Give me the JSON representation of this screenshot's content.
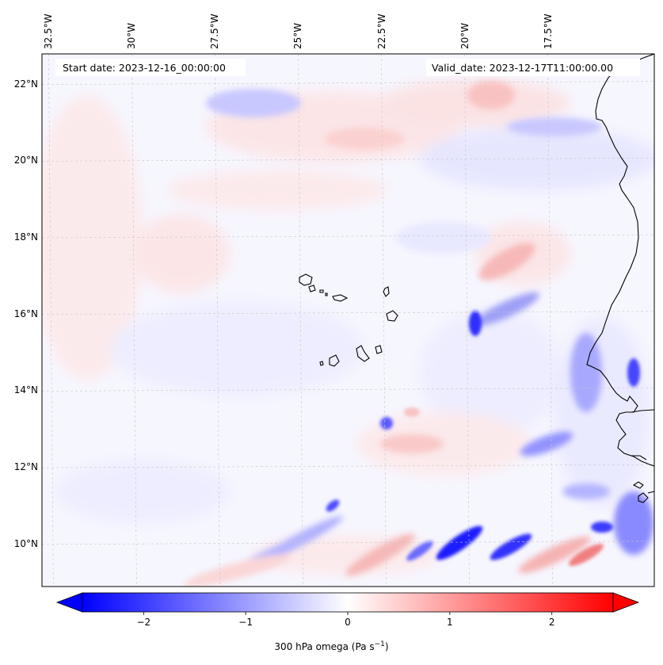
{
  "map": {
    "start_date": "Start date: 2023-12-16_00:00:00",
    "valid_date": "Valid_date: 2023-12-17T11:00:00.00",
    "extent": {
      "lon_min": -32.7,
      "lon_max": -14.3,
      "lat_min": 8.9,
      "lat_max": 22.8
    },
    "lon_ticks": [
      {
        "value": -32.5,
        "label": "32.5°W"
      },
      {
        "value": -30.0,
        "label": "30°W"
      },
      {
        "value": -27.5,
        "label": "27.5°W"
      },
      {
        "value": -25.0,
        "label": "25°W"
      },
      {
        "value": -22.5,
        "label": "22.5°W"
      },
      {
        "value": -20.0,
        "label": "20°W"
      },
      {
        "value": -17.5,
        "label": "17.5°W"
      }
    ],
    "lat_ticks": [
      {
        "value": 22,
        "label": "22°N"
      },
      {
        "value": 20,
        "label": "20°N"
      },
      {
        "value": 18,
        "label": "18°N"
      },
      {
        "value": 16,
        "label": "16°N"
      },
      {
        "value": 14,
        "label": "14°N"
      },
      {
        "value": 12,
        "label": "12°N"
      },
      {
        "value": 10,
        "label": "10°N"
      }
    ],
    "gridlines": true,
    "coastline_color": "#000000"
  },
  "colorbar": {
    "label": "300 hPa omega (Pa s",
    "label_sup": "−1",
    "label_end": ")",
    "range": [
      -2.6,
      2.6
    ],
    "ticks": [
      {
        "value": -2,
        "label": "−2"
      },
      {
        "value": -1,
        "label": "−1"
      },
      {
        "value": 0,
        "label": "0"
      },
      {
        "value": 1,
        "label": "1"
      },
      {
        "value": 2,
        "label": "2"
      }
    ],
    "colormap": "bwr",
    "color_min": "#0000ff",
    "color_mid": "#ffffff",
    "color_max": "#ff0000",
    "extend": "both"
  }
}
